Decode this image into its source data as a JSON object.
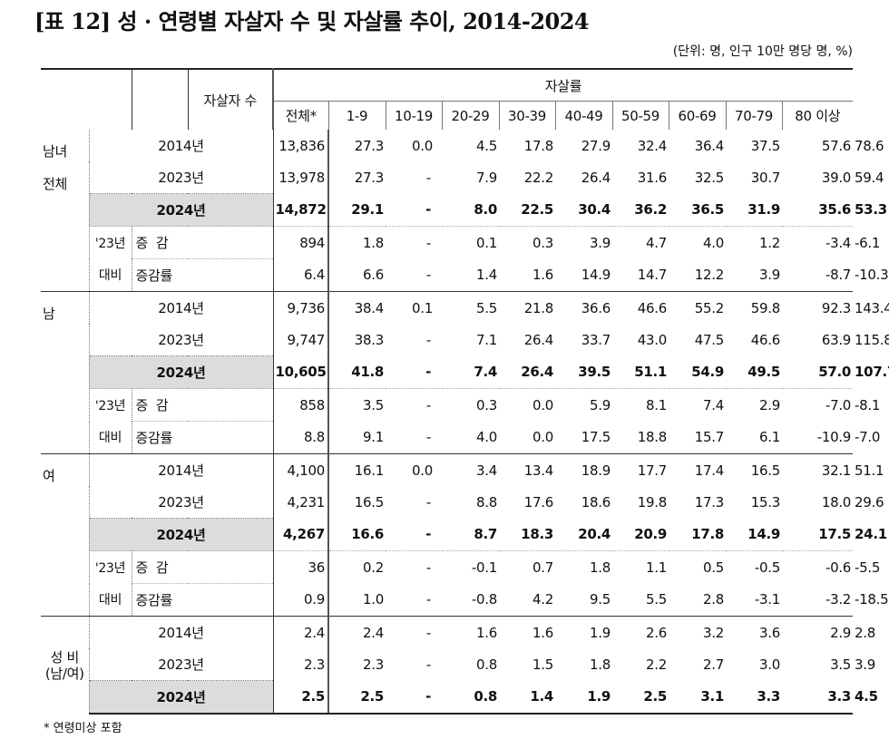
{
  "title": "[표 12] 성 · 연령별 자살자 수 및 자살률 추이, 2014-2024",
  "unit": "(단위: 명, 인구 10만 명당 명, %)",
  "header": {
    "count": "자살자 수",
    "rate": "자살률",
    "ages": [
      "전체*",
      "1-9",
      "10-19",
      "20-29",
      "30-39",
      "40-49",
      "50-59",
      "60-69",
      "70-79",
      "80 이상"
    ]
  },
  "groups": [
    {
      "label": "남녀\n전체",
      "rows": [
        {
          "label": "2014년",
          "values": [
            "13,836",
            "27.3",
            "0.0",
            "4.5",
            "17.8",
            "27.9",
            "32.4",
            "36.4",
            "37.5",
            "57.6",
            "78.6"
          ]
        },
        {
          "label": "2023년",
          "values": [
            "13,978",
            "27.3",
            "-",
            "7.9",
            "22.2",
            "26.4",
            "31.6",
            "32.5",
            "30.7",
            "39.0",
            "59.4"
          ]
        },
        {
          "label": "2024년",
          "values": [
            "14,872",
            "29.1",
            "-",
            "8.0",
            "22.5",
            "30.4",
            "36.2",
            "36.5",
            "31.9",
            "35.6",
            "53.3"
          ]
        },
        {
          "label": "증  감",
          "values": [
            "894",
            "1.8",
            "-",
            "0.1",
            "0.3",
            "3.9",
            "4.7",
            "4.0",
            "1.2",
            "-3.4",
            "-6.1"
          ]
        },
        {
          "label": "증감률",
          "values": [
            "6.4",
            "6.6",
            "-",
            "1.4",
            "1.6",
            "14.9",
            "14.7",
            "12.2",
            "3.9",
            "-8.7",
            "-10.3"
          ]
        }
      ]
    },
    {
      "label": "남",
      "rows": [
        {
          "label": "2014년",
          "values": [
            "9,736",
            "38.4",
            "0.1",
            "5.5",
            "21.8",
            "36.6",
            "46.6",
            "55.2",
            "59.8",
            "92.3",
            "143.4"
          ]
        },
        {
          "label": "2023년",
          "values": [
            "9,747",
            "38.3",
            "-",
            "7.1",
            "26.4",
            "33.7",
            "43.0",
            "47.5",
            "46.6",
            "63.9",
            "115.8"
          ]
        },
        {
          "label": "2024년",
          "values": [
            "10,605",
            "41.8",
            "-",
            "7.4",
            "26.4",
            "39.5",
            "51.1",
            "54.9",
            "49.5",
            "57.0",
            "107.7"
          ]
        },
        {
          "label": "증  감",
          "values": [
            "858",
            "3.5",
            "-",
            "0.3",
            "0.0",
            "5.9",
            "8.1",
            "7.4",
            "2.9",
            "-7.0",
            "-8.1"
          ]
        },
        {
          "label": "증감률",
          "values": [
            "8.8",
            "9.1",
            "-",
            "4.0",
            "0.0",
            "17.5",
            "18.8",
            "15.7",
            "6.1",
            "-10.9",
            "-7.0"
          ]
        }
      ]
    },
    {
      "label": "여",
      "rows": [
        {
          "label": "2014년",
          "values": [
            "4,100",
            "16.1",
            "0.0",
            "3.4",
            "13.4",
            "18.9",
            "17.7",
            "17.4",
            "16.5",
            "32.1",
            "51.1"
          ]
        },
        {
          "label": "2023년",
          "values": [
            "4,231",
            "16.5",
            "-",
            "8.8",
            "17.6",
            "18.6",
            "19.8",
            "17.3",
            "15.3",
            "18.0",
            "29.6"
          ]
        },
        {
          "label": "2024년",
          "values": [
            "4,267",
            "16.6",
            "-",
            "8.7",
            "18.3",
            "20.4",
            "20.9",
            "17.8",
            "14.9",
            "17.5",
            "24.1"
          ]
        },
        {
          "label": "증  감",
          "values": [
            "36",
            "0.2",
            "-",
            "-0.1",
            "0.7",
            "1.8",
            "1.1",
            "0.5",
            "-0.5",
            "-0.6",
            "-5.5"
          ]
        },
        {
          "label": "증감률",
          "values": [
            "0.9",
            "1.0",
            "-",
            "-0.8",
            "4.2",
            "9.5",
            "5.5",
            "2.8",
            "-3.1",
            "-3.2",
            "-18.5"
          ]
        }
      ]
    },
    {
      "label": "성 비\n(남/여)",
      "rows": [
        {
          "label": "2014년",
          "values": [
            "2.4",
            "2.4",
            "-",
            "1.6",
            "1.6",
            "1.9",
            "2.6",
            "3.2",
            "3.6",
            "2.9",
            "2.8"
          ]
        },
        {
          "label": "2023년",
          "values": [
            "2.3",
            "2.3",
            "-",
            "0.8",
            "1.5",
            "1.8",
            "2.2",
            "2.7",
            "3.0",
            "3.5",
            "3.9"
          ]
        },
        {
          "label": "2024년",
          "values": [
            "2.5",
            "2.5",
            "-",
            "0.8",
            "1.4",
            "1.9",
            "2.5",
            "3.1",
            "3.3",
            "3.3",
            "4.5"
          ]
        }
      ]
    }
  ],
  "diff_labels": {
    "line1": "'23년",
    "line2": "대비"
  },
  "note": "* 연령미상 포함"
}
